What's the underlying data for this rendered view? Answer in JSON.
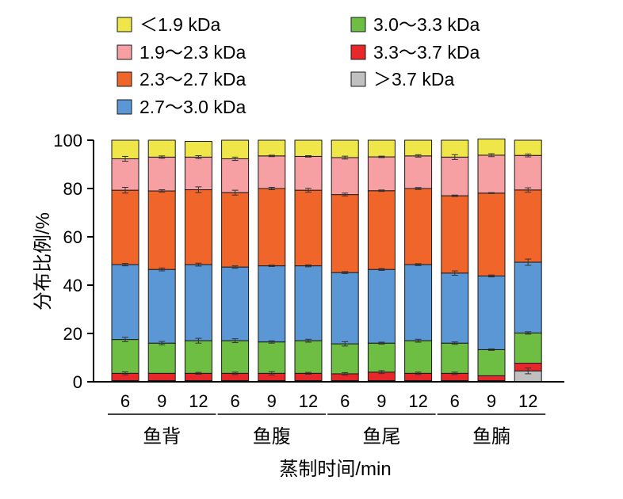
{
  "chart_data": {
    "type": "bar",
    "stacked": true,
    "ylabel": "分布比例/%",
    "xlabel": "蒸制时间/min",
    "ylim": [
      0,
      100
    ],
    "yticks": [
      0,
      20,
      40,
      60,
      80,
      100
    ],
    "grid": false,
    "legend_position": "top",
    "groups": [
      {
        "name": "鱼背",
        "categories": [
          "6",
          "9",
          "12"
        ]
      },
      {
        "name": "鱼腹",
        "categories": [
          "6",
          "9",
          "12"
        ]
      },
      {
        "name": "鱼尾",
        "categories": [
          "6",
          "9",
          "12"
        ]
      },
      {
        "name": "鱼腩",
        "categories": [
          "6",
          "9",
          "12"
        ]
      }
    ],
    "series": [
      {
        "name": "＞3.7 kDa",
        "color": "#c0c0c0",
        "values": [
          0.5,
          0.5,
          0.5,
          0.5,
          0.5,
          0.5,
          0.5,
          0.5,
          0.5,
          0.5,
          0.5,
          4.5
        ],
        "errors": [
          0,
          0,
          0,
          0,
          0,
          0,
          0,
          0,
          0,
          0,
          0,
          1.2
        ]
      },
      {
        "name": "3.3～3.7 kDa",
        "color": "#e8272a",
        "values": [
          3.0,
          3.0,
          3.0,
          3.0,
          3.0,
          3.0,
          2.8,
          3.5,
          3.0,
          3.0,
          2.0,
          3.2
        ],
        "errors": [
          0.6,
          0,
          0.4,
          0.5,
          0.7,
          0.4,
          0.5,
          0.6,
          0.5,
          0.5,
          0,
          0
        ]
      },
      {
        "name": "3.0～3.3 kDa",
        "color": "#6fbe44",
        "values": [
          14.0,
          12.5,
          13.5,
          13.5,
          13.0,
          13.5,
          12.4,
          12.0,
          13.5,
          12.5,
          10.8,
          12.5
        ],
        "errors": [
          0.9,
          0.7,
          1.0,
          0.8,
          0.5,
          0.6,
          0.9,
          0.4,
          0.6,
          0.5,
          0.3,
          0.5
        ]
      },
      {
        "name": "2.7～3.0 kDa",
        "color": "#5b97d4",
        "values": [
          31.0,
          30.5,
          31.5,
          30.5,
          31.5,
          31.0,
          29.5,
          30.5,
          31.5,
          29.0,
          30.5,
          29.3
        ],
        "errors": [
          0.5,
          0.6,
          0.6,
          0.5,
          0.3,
          0.4,
          0.4,
          0.4,
          0.4,
          0.9,
          0.4,
          1.3
        ]
      },
      {
        "name": "2.3～2.7 kDa",
        "color": "#f0652a",
        "values": [
          30.8,
          32.5,
          31.0,
          30.8,
          32.0,
          31.3,
          32.3,
          32.6,
          31.5,
          32.0,
          34.3,
          29.9
        ],
        "errors": [
          1.2,
          0.5,
          1.2,
          1.0,
          0.5,
          0.8,
          0.6,
          0.3,
          0.4,
          0.3,
          0.2,
          0.9
        ]
      },
      {
        "name": "1.9～2.3 kDa",
        "color": "#f6a0a4",
        "values": [
          13.0,
          14.0,
          13.5,
          14.0,
          13.5,
          14.0,
          15.3,
          14.0,
          13.5,
          16.0,
          15.7,
          14.3
        ],
        "errors": [
          1.0,
          0.5,
          0.6,
          0.7,
          0.3,
          0.3,
          0.6,
          0.3,
          0.5,
          1.0,
          0.6,
          0.6
        ]
      },
      {
        "name": "＜1.9 kDa",
        "color": "#efe74a",
        "values": [
          7.7,
          7.0,
          6.5,
          7.7,
          6.5,
          6.7,
          7.2,
          6.9,
          6.5,
          7.0,
          6.7,
          6.3
        ],
        "errors": [
          0,
          0,
          0,
          0,
          0,
          0,
          0,
          0,
          0,
          0,
          0,
          0
        ]
      }
    ],
    "legend": [
      {
        "label": "＜1.9 kDa",
        "color": "#efe74a"
      },
      {
        "label": "1.9～2.3 kDa",
        "color": "#f6a0a4"
      },
      {
        "label": "2.3～2.7 kDa",
        "color": "#f0652a"
      },
      {
        "label": "2.7～3.0 kDa",
        "color": "#5b97d4"
      },
      {
        "label": "3.0～3.3 kDa",
        "color": "#6fbe44"
      },
      {
        "label": "3.3～3.7 kDa",
        "color": "#e8272a"
      },
      {
        "label": "＞3.7 kDa",
        "color": "#c0c0c0"
      }
    ]
  }
}
